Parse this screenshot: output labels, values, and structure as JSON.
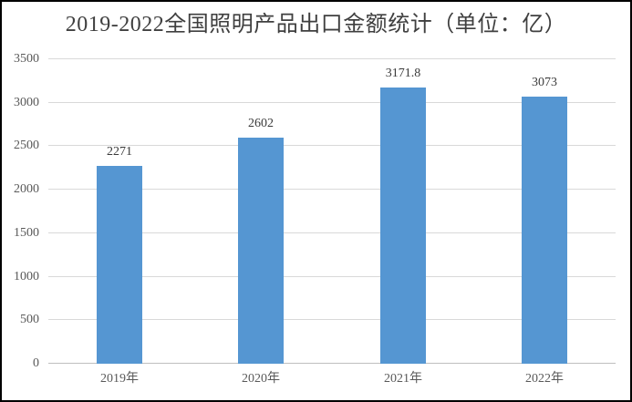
{
  "chart_data": {
    "type": "bar",
    "title": "2019-2022全国照明产品出口金额统计（单位：亿）",
    "categories": [
      "2019年",
      "2020年",
      "2021年",
      "2022年"
    ],
    "values": [
      2271,
      2602,
      3171.8,
      3073
    ],
    "data_labels": [
      "2271",
      "2602",
      "3171.8",
      "3073"
    ],
    "xlabel": "",
    "ylabel": "",
    "ylim": [
      0,
      3500
    ],
    "ytick_step": 500,
    "yticks": [
      0,
      500,
      1000,
      1500,
      2000,
      2500,
      3000,
      3500
    ],
    "grid": true,
    "legend": "none",
    "colors": {
      "bar_fill": "#5596D2",
      "gridline": "#D9D9D9",
      "axis_line": "#BFBFBF",
      "title_text": "#3F3F3F",
      "tick_label_text": "#595959",
      "data_label_text": "#3A3A3A",
      "frame_border": "#000000",
      "background": "#FFFFFF"
    }
  }
}
